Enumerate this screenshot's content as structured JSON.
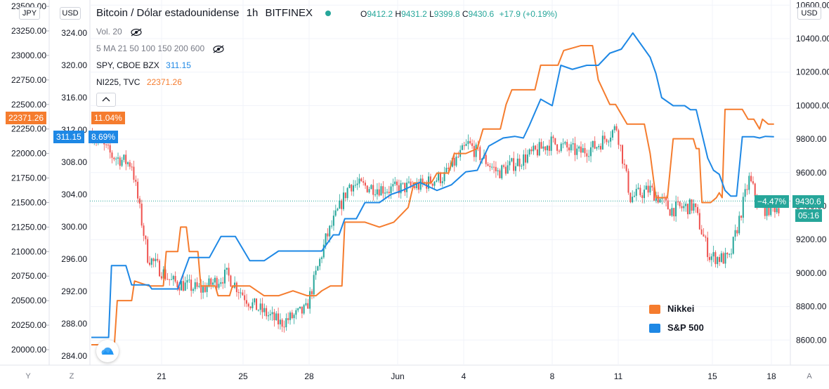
{
  "header": {
    "title": "Bitcoin / Dólar estadounidense",
    "interval": "1h",
    "exchange": "BITFINEX",
    "ohlc": {
      "o_label": "O",
      "o": "9412.2",
      "h_label": "H",
      "h": "9431.2",
      "l_label": "L",
      "l": "9399.8",
      "c_label": "C",
      "c": "9430.6",
      "change": "+17.9 (+0.19%)"
    },
    "volume": "Vol. 20",
    "ma": "5 MA 21 50 100 150 200 600",
    "spy": {
      "label": "SPY, CBOE BZX",
      "value": "311.15"
    },
    "ni": {
      "label": "NI225, TVC",
      "value": "22371.26"
    }
  },
  "axes": {
    "left_currency": "JPY",
    "left2_currency": "USD",
    "right_currency": "USD",
    "bottom_buttons": [
      "Y",
      "Z",
      "A"
    ]
  },
  "price_tags": {
    "ni_left": "22371.26",
    "ni_pct": "11.04%",
    "spy_left": "311.15",
    "spy_pct": "8.69%",
    "btc_pct": "−4.47%",
    "btc_price": "9430.6",
    "btc_timer": "05:16"
  },
  "colors": {
    "nikkei": "#f57c2e",
    "sp500": "#1e88e5",
    "up": "#26a69a",
    "down": "#ef5350",
    "grid": "#f0f3fa"
  },
  "chart_data": {
    "type": "line",
    "x_ticks": [
      "21",
      "25",
      "28",
      "Jun",
      "4",
      "8",
      "11",
      "15",
      "18"
    ],
    "y_left_jpy": [
      "23500.00",
      "23250.00",
      "23000.00",
      "22750.00",
      "22500.00",
      "22250.00",
      "22000.00",
      "21750.00",
      "21500.00",
      "21250.00",
      "21000.00",
      "20750.00",
      "20500.00",
      "20250.00",
      "20000.00"
    ],
    "y_left_usd": [
      "324.00",
      "320.00",
      "316.00",
      "312.00",
      "308.00",
      "304.00",
      "300.00",
      "296.00",
      "292.00",
      "288.00",
      "284.00"
    ],
    "y_right_usd": [
      "10600.00",
      "10400.00",
      "10200.00",
      "10000.00",
      "9800.00",
      "9600.00",
      "9400.00",
      "9200.00",
      "9000.00",
      "8800.00",
      "8600.00"
    ],
    "series": [
      {
        "name": "Nikkei",
        "axis": "JPY",
        "values": [
          [
            0,
            20050
          ],
          [
            8,
            20050
          ],
          [
            9,
            20500
          ],
          [
            14,
            20500
          ],
          [
            15,
            20700
          ],
          [
            20,
            20650
          ],
          [
            25,
            20650
          ],
          [
            26,
            21000
          ],
          [
            30,
            21000
          ],
          [
            31,
            21250
          ],
          [
            33,
            21250
          ],
          [
            34,
            21000
          ],
          [
            37,
            21000
          ],
          [
            38,
            20650
          ],
          [
            43,
            20650
          ],
          [
            44,
            20550
          ],
          [
            48,
            20550
          ],
          [
            49,
            20650
          ],
          [
            55,
            20650
          ],
          [
            60,
            20550
          ],
          [
            65,
            20550
          ],
          [
            70,
            20600
          ],
          [
            75,
            20550
          ],
          [
            78,
            20550
          ],
          [
            80,
            20600
          ],
          [
            83,
            20650
          ],
          [
            87,
            20650
          ],
          [
            88,
            21300
          ],
          [
            95,
            21300
          ],
          [
            100,
            21250
          ],
          [
            105,
            21300
          ],
          [
            110,
            21450
          ],
          [
            112,
            21700
          ],
          [
            118,
            21700
          ],
          [
            120,
            21800
          ],
          [
            124,
            21800
          ],
          [
            126,
            22000
          ],
          [
            130,
            22000
          ],
          [
            134,
            22050
          ],
          [
            136,
            22250
          ],
          [
            142,
            22250
          ],
          [
            144,
            22500
          ],
          [
            146,
            22650
          ],
          [
            150,
            22650
          ],
          [
            154,
            22650
          ],
          [
            156,
            22900
          ],
          [
            160,
            22900
          ],
          [
            162,
            22900
          ],
          [
            164,
            23050
          ],
          [
            170,
            23100
          ],
          [
            174,
            23100
          ],
          [
            176,
            22750
          ],
          [
            180,
            22500
          ],
          [
            182,
            22500
          ],
          [
            186,
            22300
          ],
          [
            190,
            22300
          ],
          [
            192,
            22300
          ],
          [
            194,
            22000
          ],
          [
            196,
            21550
          ],
          [
            200,
            21550
          ],
          [
            202,
            22150
          ],
          [
            206,
            22150
          ],
          [
            207,
            22150
          ],
          [
            209,
            22150
          ],
          [
            210,
            22050
          ],
          [
            211,
            22050
          ],
          [
            212,
            21500
          ],
          [
            214,
            21500
          ],
          [
            215,
            21500
          ],
          [
            217,
            21550
          ],
          [
            218,
            21600
          ],
          [
            219,
            21550
          ],
          [
            220,
            22450
          ],
          [
            224,
            22450
          ],
          [
            226,
            22450
          ],
          [
            228,
            22350
          ],
          [
            230,
            22350
          ],
          [
            232,
            22250
          ],
          [
            233,
            22350
          ],
          [
            235,
            22300
          ],
          [
            237,
            22300
          ]
        ]
      },
      {
        "name": "S&P 500",
        "axis": "USD",
        "values": [
          [
            0,
            286.3
          ],
          [
            6,
            286.3
          ],
          [
            7,
            295.2
          ],
          [
            12,
            295.2
          ],
          [
            14,
            292.8
          ],
          [
            20,
            292.8
          ],
          [
            21,
            292.3
          ],
          [
            25,
            292.3
          ],
          [
            30,
            292.3
          ],
          [
            34,
            296.2
          ],
          [
            38,
            296.2
          ],
          [
            41,
            296.2
          ],
          [
            45,
            298.8
          ],
          [
            50,
            298.8
          ],
          [
            55,
            295.8
          ],
          [
            60,
            295.8
          ],
          [
            65,
            297.0
          ],
          [
            70,
            297.0
          ],
          [
            75,
            297.0
          ],
          [
            80,
            297.0
          ],
          [
            84,
            299.0
          ],
          [
            86,
            299.0
          ],
          [
            88,
            301.0
          ],
          [
            92,
            301.0
          ],
          [
            95,
            303.0
          ],
          [
            100,
            303.0
          ],
          [
            104,
            304.0
          ],
          [
            108,
            304.5
          ],
          [
            114,
            305.5
          ],
          [
            120,
            304.5
          ],
          [
            125,
            305.2
          ],
          [
            130,
            306.8
          ],
          [
            134,
            307.0
          ],
          [
            138,
            310.0
          ],
          [
            143,
            311.0
          ],
          [
            147,
            311.2
          ],
          [
            150,
            311.0
          ],
          [
            152,
            312.5
          ],
          [
            156,
            315.8
          ],
          [
            160,
            315.0
          ],
          [
            163,
            320.0
          ],
          [
            167,
            319.5
          ],
          [
            172,
            320.0
          ],
          [
            176,
            320.0
          ],
          [
            180,
            321.5
          ],
          [
            184,
            322.0
          ],
          [
            188,
            324.0
          ],
          [
            190,
            323.0
          ],
          [
            194,
            321.0
          ],
          [
            196,
            319.0
          ],
          [
            198,
            316.0
          ],
          [
            202,
            315.0
          ],
          [
            206,
            315.0
          ],
          [
            208,
            314.5
          ],
          [
            210,
            314.5
          ],
          [
            212,
            311.5
          ],
          [
            213,
            310.0
          ],
          [
            214,
            308.5
          ],
          [
            216,
            307.0
          ],
          [
            218,
            306.5
          ],
          [
            220,
            304.5
          ],
          [
            222,
            303.8
          ],
          [
            224,
            303.8
          ],
          [
            226,
            311.15
          ],
          [
            230,
            311.15
          ],
          [
            232,
            311.0
          ],
          [
            234,
            311.2
          ],
          [
            237,
            311.15
          ]
        ]
      }
    ],
    "legend": [
      "Nikkei",
      "S&P 500"
    ],
    "legend_position": "bottom-right",
    "current_price": 9430.6,
    "bitcoin_price_range": [
      8600,
      10600
    ]
  }
}
